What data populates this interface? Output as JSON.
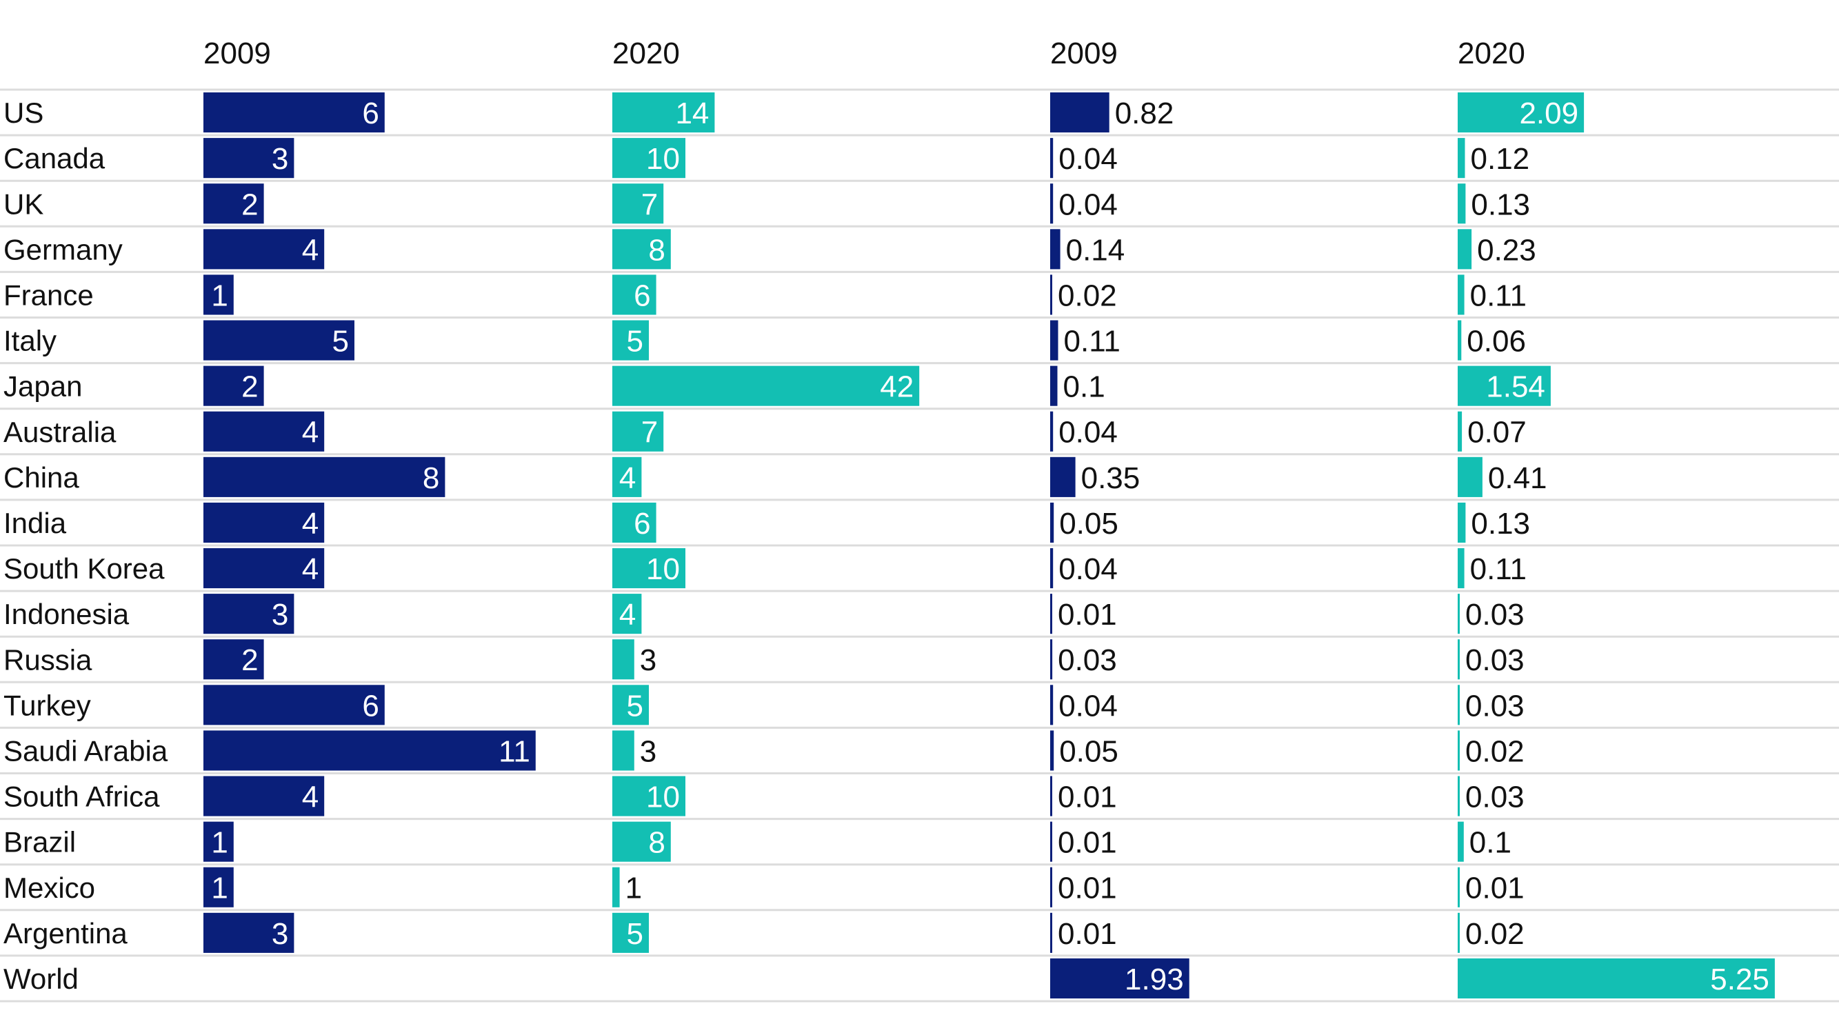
{
  "colors": {
    "series_2009": "#0a1f7a",
    "series_2020": "#13bfb3",
    "row_divider": "#dcdcdc"
  },
  "chart_data": {
    "type": "bar",
    "orientation": "horizontal",
    "categories": [
      "US",
      "Canada",
      "UK",
      "Germany",
      "France",
      "Italy",
      "Japan",
      "Australia",
      "China",
      "India",
      "South Korea",
      "Indonesia",
      "Russia",
      "Turkey",
      "Saudi Arabia",
      "South Africa",
      "Brazil",
      "Mexico",
      "Argentina",
      "World"
    ],
    "panels": [
      {
        "series": [
          {
            "name": "2009",
            "values": [
              6,
              3,
              2,
              4,
              1,
              5,
              2,
              4,
              8,
              4,
              4,
              3,
              2,
              6,
              11,
              4,
              1,
              1,
              3,
              null
            ]
          },
          {
            "name": "2020",
            "values": [
              14,
              10,
              7,
              8,
              6,
              5,
              42,
              7,
              4,
              6,
              10,
              4,
              3,
              5,
              3,
              10,
              8,
              1,
              5,
              null
            ]
          }
        ]
      },
      {
        "series": [
          {
            "name": "2009",
            "values": [
              0.82,
              0.04,
              0.04,
              0.14,
              0.02,
              0.11,
              0.1,
              0.04,
              0.35,
              0.05,
              0.04,
              0.01,
              0.03,
              0.04,
              0.05,
              0.01,
              0.01,
              0.01,
              0.01,
              1.93
            ]
          },
          {
            "name": "2020",
            "values": [
              2.09,
              0.12,
              0.13,
              0.23,
              0.11,
              0.06,
              1.54,
              0.07,
              0.41,
              0.13,
              0.11,
              0.03,
              0.03,
              0.03,
              0.02,
              0.03,
              0.1,
              0.01,
              0.02,
              5.25
            ]
          }
        ]
      }
    ],
    "grid": false,
    "legend": "none"
  }
}
